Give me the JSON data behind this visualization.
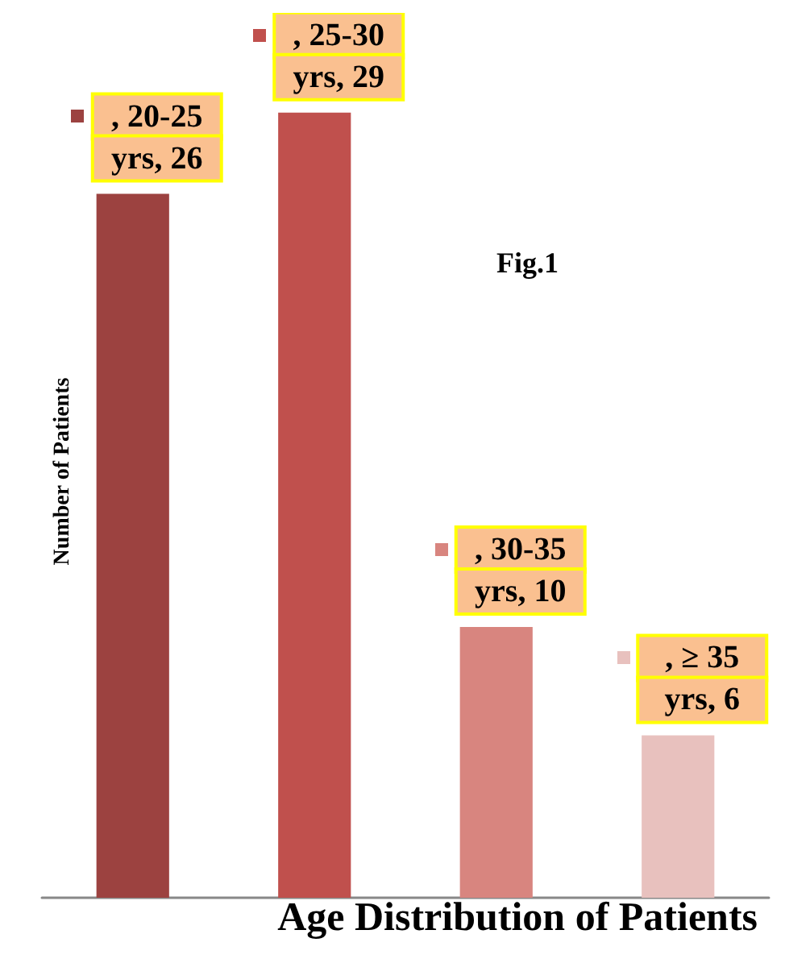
{
  "chart_data": {
    "type": "bar",
    "title": "Age Distribution of Patients",
    "ylabel": "Number of Patients",
    "annotations": [
      "Fig.1"
    ],
    "categories": [
      null,
      null,
      null,
      null
    ],
    "values": [
      26,
      29,
      10,
      6
    ],
    "colors": [
      "#9c4240",
      "#c0504d",
      "#d8857f",
      "#e8c1be"
    ],
    "value_labels": [
      ", 20-25 yrs, 26",
      ", 25-30 yrs, 29",
      ", 30-35 yrs, 10",
      ", ≥ 35 yrs, 6"
    ],
    "relative": false,
    "grid": false
  }
}
